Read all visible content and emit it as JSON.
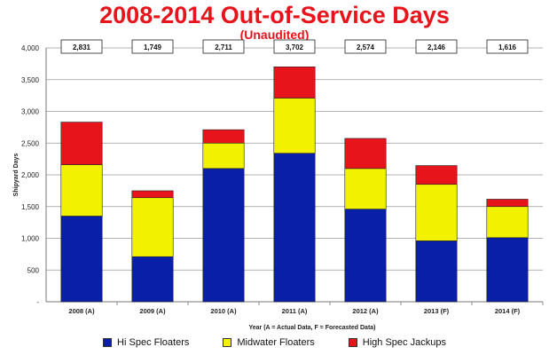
{
  "chart_data": {
    "type": "bar",
    "stacked": true,
    "title": "2008-2014 Out-of-Service Days",
    "subtitle": "(Unaudited)",
    "xlabel": "Year (A = Actual Data, F = Forecasted Data)",
    "ylabel": "Shipyard Days",
    "ylim": [
      0,
      4000
    ],
    "yticks": [
      "-",
      "500",
      "1,000",
      "1,500",
      "2,000",
      "2,500",
      "3,000",
      "3,500",
      "4,000"
    ],
    "categories": [
      "2008 (A)",
      "2009 (A)",
      "2010 (A)",
      "2011 (A)",
      "2012 (A)",
      "2013 (F)",
      "2014 (F)"
    ],
    "totals": [
      "2,831",
      "1,749",
      "2,711",
      "3,702",
      "2,574",
      "2,146",
      "1,616"
    ],
    "series": [
      {
        "name": "Hi Spec Floaters",
        "color": "#0a1fa8",
        "values": [
          1350,
          710,
          2100,
          2340,
          1460,
          960,
          1010
        ]
      },
      {
        "name": "Midwater Floaters",
        "color": "#f2f200",
        "values": [
          810,
          930,
          400,
          870,
          640,
          890,
          490
        ]
      },
      {
        "name": "High Spec Jackups",
        "color": "#e8141c",
        "values": [
          671,
          109,
          211,
          492,
          474,
          296,
          116
        ]
      }
    ],
    "grid": "horizontal",
    "legend_position": "bottom"
  }
}
